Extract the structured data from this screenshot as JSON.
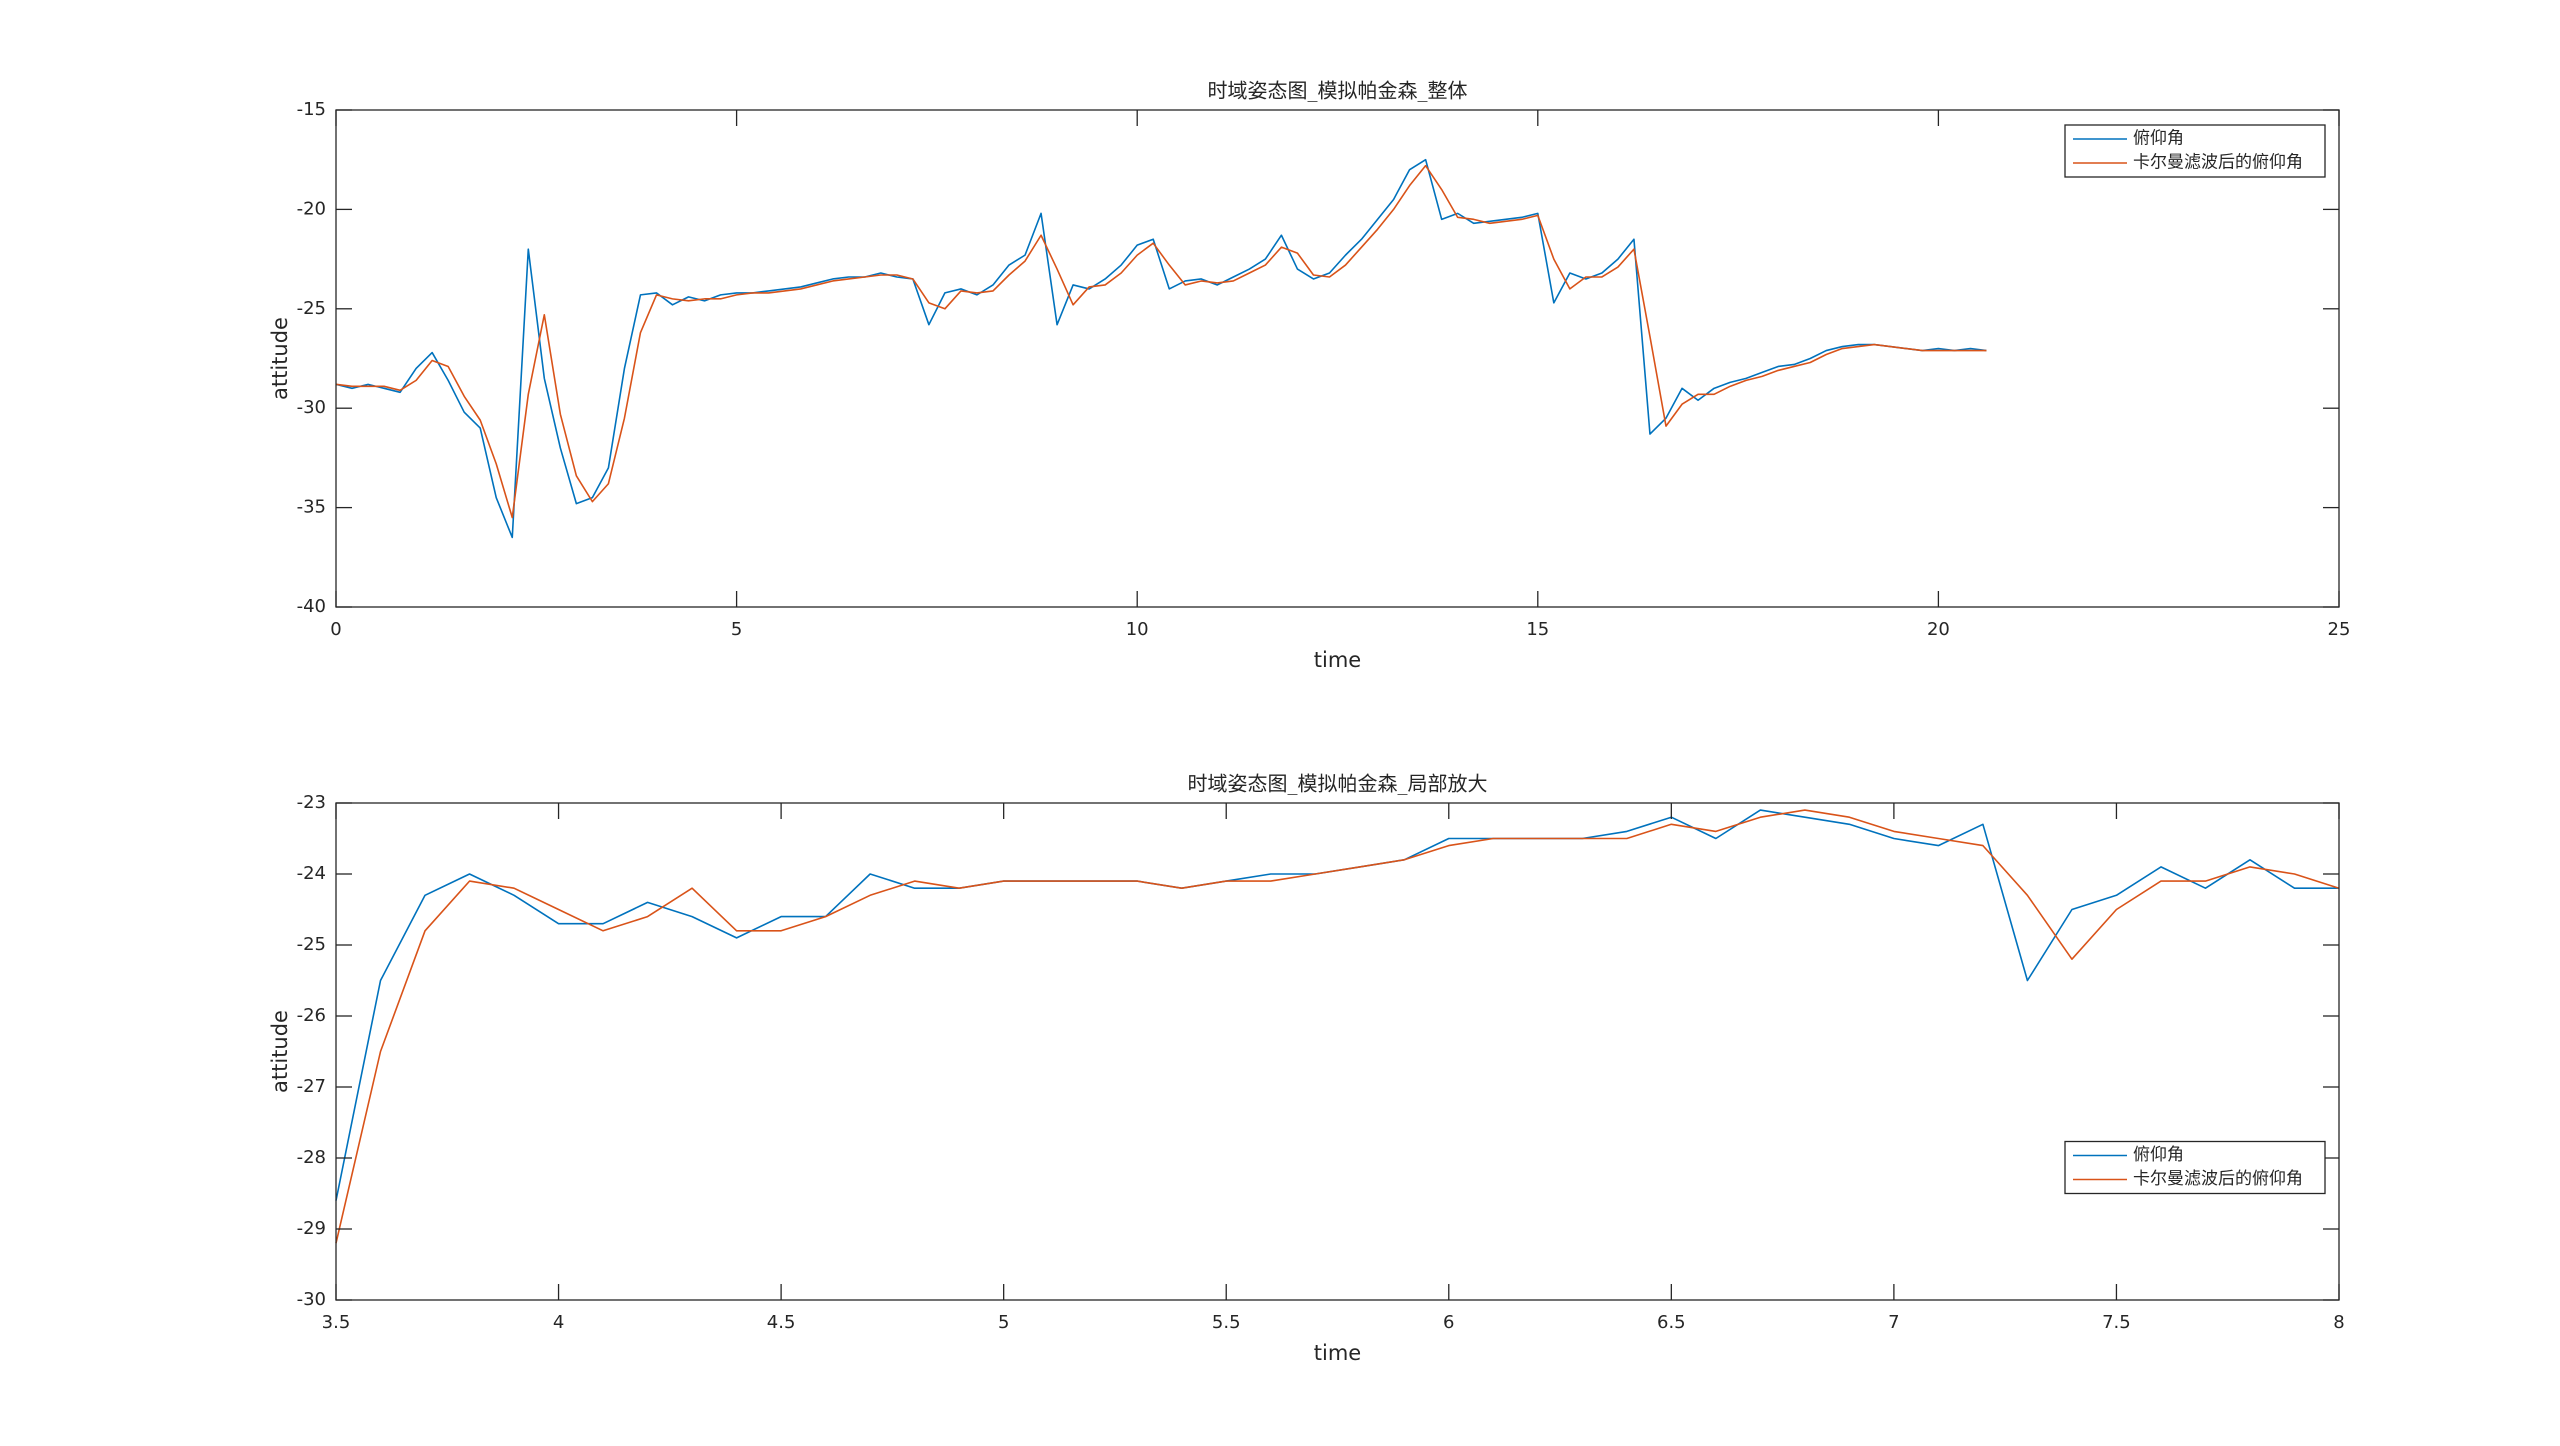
{
  "chart_data": [
    {
      "type": "line",
      "title": "时域姿态图_模拟帕金森_整体",
      "x_label": "time",
      "y_label": "attitude",
      "xlim": [
        0,
        25
      ],
      "xticks": [
        0,
        5,
        10,
        15,
        20,
        25
      ],
      "ylim": [
        -40,
        -15
      ],
      "yticks": [
        -40,
        -35,
        -30,
        -25,
        -20,
        -15
      ],
      "grid": false,
      "legend": "northeast",
      "x": [
        0,
        0.2,
        0.4,
        0.6,
        0.8,
        1,
        1.2,
        1.4,
        1.6,
        1.8,
        2,
        2.2,
        2.4,
        2.6,
        2.8,
        3,
        3.2,
        3.4,
        3.6,
        3.8,
        4,
        4.2,
        4.4,
        4.6,
        4.8,
        5,
        5.2,
        5.4,
        5.6,
        5.8,
        6,
        6.2,
        6.4,
        6.6,
        6.8,
        7,
        7.2,
        7.4,
        7.6,
        7.8,
        8,
        8.2,
        8.4,
        8.6,
        8.8,
        9,
        9.2,
        9.4,
        9.6,
        9.8,
        10,
        10.2,
        10.4,
        10.6,
        10.8,
        11,
        11.2,
        11.4,
        11.6,
        11.8,
        12,
        12.2,
        12.4,
        12.6,
        12.8,
        13,
        13.2,
        13.4,
        13.6,
        13.8,
        14,
        14.2,
        14.4,
        14.6,
        14.8,
        15,
        15.2,
        15.4,
        15.6,
        15.8,
        16,
        16.2,
        16.4,
        16.6,
        16.8,
        17,
        17.2,
        17.4,
        17.6,
        17.8,
        18,
        18.2,
        18.4,
        18.6,
        18.8,
        19,
        19.2,
        19.4,
        19.6,
        19.8,
        20,
        20.2,
        20.4,
        20.6
      ],
      "series": [
        {
          "name": "俯仰角",
          "color": "#0072bd",
          "values": [
            -28.8,
            -29.0,
            -28.8,
            -29.0,
            -29.2,
            -28.0,
            -27.2,
            -28.6,
            -30.2,
            -31.0,
            -34.5,
            -36.5,
            -22.0,
            -28.5,
            -32.0,
            -34.8,
            -34.5,
            -33.0,
            -28.0,
            -24.3,
            -24.2,
            -24.8,
            -24.4,
            -24.6,
            -24.3,
            -24.2,
            -24.2,
            -24.1,
            -24.0,
            -23.9,
            -23.7,
            -23.5,
            -23.4,
            -23.4,
            -23.2,
            -23.4,
            -23.5,
            -25.8,
            -24.2,
            -24.0,
            -24.3,
            -23.8,
            -22.8,
            -22.3,
            -20.2,
            -25.8,
            -23.8,
            -24.0,
            -23.5,
            -22.8,
            -21.8,
            -21.5,
            -24.0,
            -23.6,
            -23.5,
            -23.8,
            -23.4,
            -23.0,
            -22.5,
            -21.3,
            -23.0,
            -23.5,
            -23.2,
            -22.3,
            -21.5,
            -20.5,
            -19.5,
            -18.0,
            -17.5,
            -20.5,
            -20.2,
            -20.7,
            -20.6,
            -20.5,
            -20.4,
            -20.2,
            -24.7,
            -23.2,
            -23.5,
            -23.2,
            -22.5,
            -21.5,
            -31.3,
            -30.5,
            -29.0,
            -29.6,
            -29.0,
            -28.7,
            -28.5,
            -28.2,
            -27.9,
            -27.8,
            -27.5,
            -27.1,
            -26.9,
            -26.8,
            -26.8,
            -26.9,
            -27.0,
            -27.1,
            -27.0,
            -27.1,
            -27.0,
            -27.1
          ]
        },
        {
          "name": "卡尔曼滤波后的俯仰角",
          "color": "#d95319",
          "values": [
            -28.8,
            -28.9,
            -28.9,
            -28.9,
            -29.1,
            -28.6,
            -27.6,
            -27.9,
            -29.4,
            -30.6,
            -32.8,
            -35.5,
            -29.3,
            -25.3,
            -30.3,
            -33.4,
            -34.7,
            -33.8,
            -30.5,
            -26.2,
            -24.3,
            -24.5,
            -24.6,
            -24.5,
            -24.5,
            -24.3,
            -24.2,
            -24.2,
            -24.1,
            -24.0,
            -23.8,
            -23.6,
            -23.5,
            -23.4,
            -23.3,
            -23.3,
            -23.5,
            -24.7,
            -25.0,
            -24.1,
            -24.2,
            -24.1,
            -23.3,
            -22.6,
            -21.3,
            -23.0,
            -24.8,
            -23.9,
            -23.8,
            -23.2,
            -22.3,
            -21.7,
            -22.8,
            -23.8,
            -23.6,
            -23.7,
            -23.6,
            -23.2,
            -22.8,
            -21.9,
            -22.2,
            -23.3,
            -23.4,
            -22.8,
            -21.9,
            -21.0,
            -20.0,
            -18.8,
            -17.8,
            -19.0,
            -20.4,
            -20.5,
            -20.7,
            -20.6,
            -20.5,
            -20.3,
            -22.5,
            -24.0,
            -23.4,
            -23.4,
            -22.9,
            -22.0,
            -26.4,
            -30.9,
            -29.8,
            -29.3,
            -29.3,
            -28.9,
            -28.6,
            -28.4,
            -28.1,
            -27.9,
            -27.7,
            -27.3,
            -27.0,
            -26.9,
            -26.8,
            -26.9,
            -27.0,
            -27.1,
            -27.1,
            -27.1,
            -27.1,
            -27.1
          ]
        }
      ]
    },
    {
      "type": "line",
      "title": "时域姿态图_模拟帕金森_局部放大",
      "x_label": "time",
      "y_label": "attitude",
      "xlim": [
        3.5,
        8
      ],
      "xticks": [
        3.5,
        4,
        4.5,
        5,
        5.5,
        6,
        6.5,
        7,
        7.5,
        8
      ],
      "ylim": [
        -30,
        -23
      ],
      "yticks": [
        -30,
        -29,
        -28,
        -27,
        -26,
        -25,
        -24,
        -23
      ],
      "grid": false,
      "legend": "east",
      "x": [
        3.5,
        3.6,
        3.7,
        3.8,
        3.9,
        4,
        4.1,
        4.2,
        4.3,
        4.4,
        4.5,
        4.6,
        4.7,
        4.8,
        4.9,
        5,
        5.1,
        5.2,
        5.3,
        5.4,
        5.5,
        5.6,
        5.7,
        5.8,
        5.9,
        6,
        6.1,
        6.2,
        6.3,
        6.4,
        6.5,
        6.6,
        6.7,
        6.8,
        6.9,
        7,
        7.1,
        7.2,
        7.3,
        7.4,
        7.5,
        7.6,
        7.7,
        7.8,
        7.9,
        8
      ],
      "series": [
        {
          "name": "俯仰角",
          "color": "#0072bd",
          "values": [
            -28.6,
            -25.5,
            -24.3,
            -24.0,
            -24.3,
            -24.7,
            -24.7,
            -24.4,
            -24.6,
            -24.9,
            -24.6,
            -24.6,
            -24.0,
            -24.2,
            -24.2,
            -24.1,
            -24.1,
            -24.1,
            -24.1,
            -24.2,
            -24.1,
            -24.0,
            -24.0,
            -23.9,
            -23.8,
            -23.5,
            -23.5,
            -23.5,
            -23.5,
            -23.4,
            -23.2,
            -23.5,
            -23.1,
            -23.2,
            -23.3,
            -23.5,
            -23.6,
            -23.3,
            -25.5,
            -24.5,
            -24.3,
            -23.9,
            -24.2,
            -23.8,
            -24.2,
            -24.2
          ]
        },
        {
          "name": "卡尔曼滤波后的俯仰角",
          "color": "#d95319",
          "values": [
            -29.2,
            -26.5,
            -24.8,
            -24.1,
            -24.2,
            -24.5,
            -24.8,
            -24.6,
            -24.2,
            -24.8,
            -24.8,
            -24.6,
            -24.3,
            -24.1,
            -24.2,
            -24.1,
            -24.1,
            -24.1,
            -24.1,
            -24.2,
            -24.1,
            -24.1,
            -24.0,
            -23.9,
            -23.8,
            -23.6,
            -23.5,
            -23.5,
            -23.5,
            -23.5,
            -23.3,
            -23.4,
            -23.2,
            -23.1,
            -23.2,
            -23.4,
            -23.5,
            -23.6,
            -24.3,
            -25.2,
            -24.5,
            -24.1,
            -24.1,
            -23.9,
            -24.0,
            -24.2
          ]
        }
      ]
    }
  ]
}
